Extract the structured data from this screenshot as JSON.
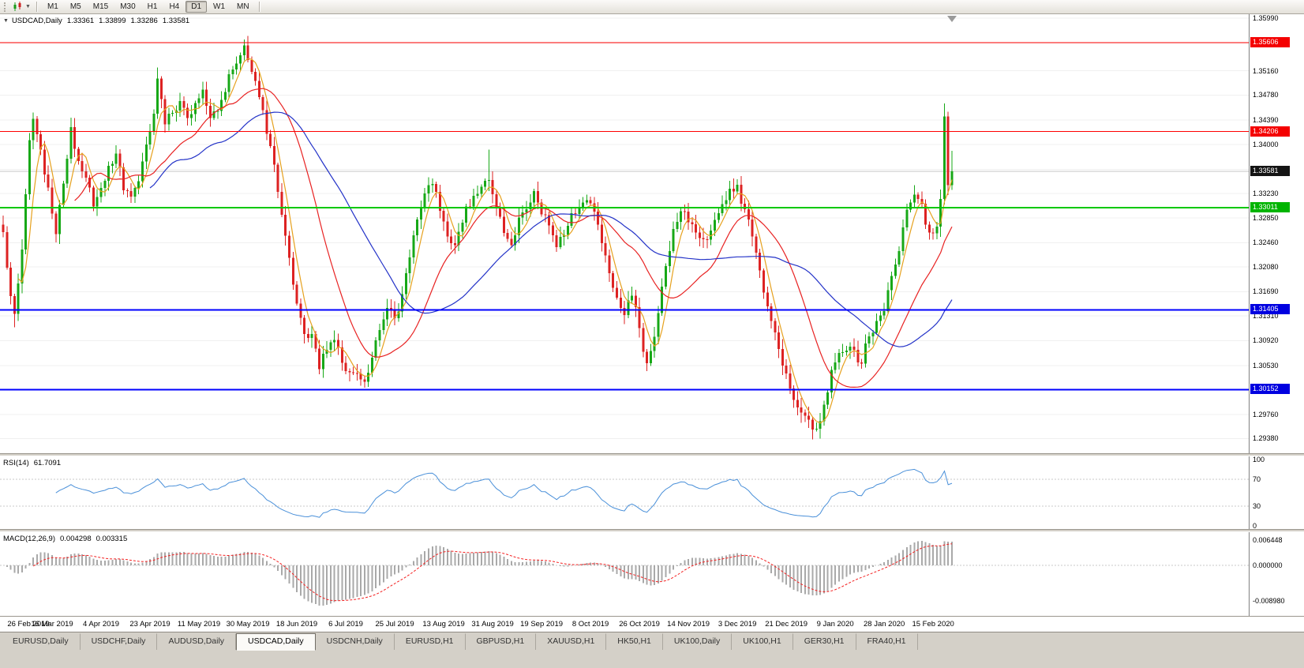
{
  "toolbar": {
    "timeframes": [
      "M1",
      "M5",
      "M15",
      "M30",
      "H1",
      "H4",
      "D1",
      "W1",
      "MN"
    ],
    "active": "D1"
  },
  "chart_header": {
    "expander": "▼",
    "symbol": "USDCAD,Daily",
    "open": "1.33361",
    "high": "1.33899",
    "low": "1.33286",
    "close": "1.33581"
  },
  "price_axis": {
    "labels": [
      "1.35990",
      "1.35600",
      "1.35160",
      "1.34780",
      "1.34390",
      "1.34000",
      "1.33610",
      "1.33230",
      "1.32850",
      "1.32460",
      "1.32080",
      "1.31690",
      "1.31310",
      "1.30920",
      "1.30530",
      "1.30140",
      "1.29760",
      "1.29380"
    ],
    "tags": [
      {
        "value": 1.35606,
        "text": "1.35606",
        "bg": "#f40000"
      },
      {
        "value": 1.34206,
        "text": "1.34206",
        "bg": "#f40000"
      },
      {
        "value": 1.33581,
        "text": "1.33581",
        "bg": "#141414"
      },
      {
        "value": 1.33011,
        "text": "1.33011",
        "bg": "#00b400"
      },
      {
        "value": 1.31405,
        "text": "1.31405",
        "bg": "#0000e0"
      },
      {
        "value": 1.30152,
        "text": "1.30152",
        "bg": "#0000e0"
      }
    ]
  },
  "time_axis": {
    "labels": [
      "26 Feb 2019",
      "16 Mar 2019",
      "4 Apr 2019",
      "23 Apr 2019",
      "11 May 2019",
      "30 May 2019",
      "18 Jun 2019",
      "6 Jul 2019",
      "25 Jul 2019",
      "13 Aug 2019",
      "31 Aug 2019",
      "19 Sep 2019",
      "8 Oct 2019",
      "26 Oct 2019",
      "14 Nov 2019",
      "3 Dec 2019",
      "21 Dec 2019",
      "9 Jan 2020",
      "28 Jan 2020",
      "15 Feb 2020"
    ]
  },
  "rsi_panel": {
    "title": "RSI(14)",
    "value": "61.7091",
    "line_color": "#4a90d9",
    "axis_labels": [
      "100",
      "70",
      "30",
      "0"
    ],
    "level_lines": [
      70,
      30
    ]
  },
  "macd_panel": {
    "title": "MACD(12,26,9)",
    "macd_value": "0.004298",
    "signal_value": "0.003315",
    "axis_labels": [
      "0.006448",
      "0.000000",
      "-0.008980"
    ],
    "histogram_color": "#a9a9a9",
    "signal_color": "#f42020"
  },
  "tabs": {
    "items": [
      "EURUSD,Daily",
      "USDCHF,Daily",
      "AUDUSD,Daily",
      "USDCAD,Daily",
      "USDCNH,Daily",
      "EURUSD,H1",
      "GBPUSD,H1",
      "XAUUSD,H1",
      "HK50,H1",
      "UK100,Daily",
      "UK100,H1",
      "GER30,H1",
      "FRA40,H1"
    ],
    "active": "USDCAD,Daily"
  },
  "chart_data": {
    "type": "candlestick",
    "symbol": "USDCAD",
    "timeframe": "Daily",
    "title": "USDCAD,Daily 1.33361 1.33899 1.33286 1.33581",
    "y_range": [
      1.2915,
      1.3605
    ],
    "candles": 253,
    "current_price": 1.33581,
    "up_color": "#17a817",
    "down_color": "#dd2222",
    "levels": [
      {
        "price": 1.35606,
        "color": "#ff0000",
        "width": 1
      },
      {
        "price": 1.34206,
        "color": "#ff0000",
        "width": 1
      },
      {
        "price": 1.33011,
        "color": "#00c800",
        "width": 2
      },
      {
        "price": 1.31405,
        "color": "#0000ff",
        "width": 2
      },
      {
        "price": 1.30152,
        "color": "#0000ff",
        "width": 2
      }
    ],
    "moving_averages": [
      {
        "period": 5,
        "color": "#e6a11e"
      },
      {
        "period": 20,
        "color": "#e82222"
      },
      {
        "period": 40,
        "color": "#2433c8"
      }
    ],
    "price_waypoints": [
      [
        0,
        1.3255
      ],
      [
        2,
        1.317
      ],
      [
        3,
        1.314
      ],
      [
        5,
        1.323
      ],
      [
        7,
        1.34
      ],
      [
        8,
        1.3445
      ],
      [
        10,
        1.339
      ],
      [
        12,
        1.333
      ],
      [
        14,
        1.3265
      ],
      [
        16,
        1.334
      ],
      [
        18,
        1.342
      ],
      [
        20,
        1.338
      ],
      [
        22,
        1.3345
      ],
      [
        24,
        1.3305
      ],
      [
        26,
        1.333
      ],
      [
        28,
        1.3365
      ],
      [
        30,
        1.3385
      ],
      [
        32,
        1.333
      ],
      [
        34,
        1.3315
      ],
      [
        36,
        1.335
      ],
      [
        38,
        1.34
      ],
      [
        40,
        1.345
      ],
      [
        41,
        1.35
      ],
      [
        43,
        1.3435
      ],
      [
        45,
        1.345
      ],
      [
        47,
        1.347
      ],
      [
        49,
        1.344
      ],
      [
        51,
        1.346
      ],
      [
        53,
        1.348
      ],
      [
        55,
        1.3445
      ],
      [
        57,
        1.346
      ],
      [
        59,
        1.349
      ],
      [
        61,
        1.352
      ],
      [
        63,
        1.354
      ],
      [
        64,
        1.355
      ],
      [
        66,
        1.352
      ],
      [
        68,
        1.348
      ],
      [
        70,
        1.342
      ],
      [
        72,
        1.337
      ],
      [
        74,
        1.329
      ],
      [
        76,
        1.322
      ],
      [
        78,
        1.315
      ],
      [
        80,
        1.311
      ],
      [
        82,
        1.3095
      ],
      [
        84,
        1.305
      ],
      [
        86,
        1.308
      ],
      [
        88,
        1.31
      ],
      [
        90,
        1.306
      ],
      [
        92,
        1.3035
      ],
      [
        94,
        1.304
      ],
      [
        96,
        1.3022
      ],
      [
        98,
        1.306
      ],
      [
        100,
        1.311
      ],
      [
        102,
        1.315
      ],
      [
        104,
        1.3125
      ],
      [
        106,
        1.316
      ],
      [
        108,
        1.323
      ],
      [
        110,
        1.329
      ],
      [
        112,
        1.332
      ],
      [
        114,
        1.334
      ],
      [
        116,
        1.33
      ],
      [
        118,
        1.326
      ],
      [
        120,
        1.3245
      ],
      [
        122,
        1.328
      ],
      [
        124,
        1.331
      ],
      [
        126,
        1.333
      ],
      [
        128,
        1.334
      ],
      [
        129,
        1.335
      ],
      [
        131,
        1.33
      ],
      [
        133,
        1.3265
      ],
      [
        135,
        1.325
      ],
      [
        137,
        1.328
      ],
      [
        139,
        1.33
      ],
      [
        141,
        1.332
      ],
      [
        143,
        1.3295
      ],
      [
        145,
        1.327
      ],
      [
        147,
        1.3245
      ],
      [
        149,
        1.3265
      ],
      [
        151,
        1.3285
      ],
      [
        153,
        1.3305
      ],
      [
        155,
        1.332
      ],
      [
        157,
        1.33
      ],
      [
        159,
        1.325
      ],
      [
        161,
        1.32
      ],
      [
        163,
        1.316
      ],
      [
        165,
        1.314
      ],
      [
        167,
        1.3165
      ],
      [
        169,
        1.311
      ],
      [
        171,
        1.3055
      ],
      [
        173,
        1.31
      ],
      [
        175,
        1.318
      ],
      [
        177,
        1.324
      ],
      [
        179,
        1.328
      ],
      [
        181,
        1.33
      ],
      [
        183,
        1.327
      ],
      [
        185,
        1.325
      ],
      [
        187,
        1.3245
      ],
      [
        189,
        1.3285
      ],
      [
        191,
        1.331
      ],
      [
        193,
        1.3325
      ],
      [
        195,
        1.333
      ],
      [
        197,
        1.33
      ],
      [
        199,
        1.325
      ],
      [
        201,
        1.32
      ],
      [
        203,
        1.315
      ],
      [
        205,
        1.31
      ],
      [
        207,
        1.306
      ],
      [
        209,
        1.302
      ],
      [
        211,
        1.299
      ],
      [
        213,
        1.297
      ],
      [
        215,
        1.2955
      ],
      [
        216,
        1.295
      ],
      [
        218,
        1.2995
      ],
      [
        220,
        1.304
      ],
      [
        222,
        1.3065
      ],
      [
        224,
        1.308
      ],
      [
        226,
        1.307
      ],
      [
        228,
        1.306
      ],
      [
        230,
        1.31
      ],
      [
        232,
        1.312
      ],
      [
        234,
        1.3145
      ],
      [
        236,
        1.319
      ],
      [
        238,
        1.324
      ],
      [
        240,
        1.329
      ],
      [
        242,
        1.332
      ],
      [
        244,
        1.33
      ],
      [
        246,
        1.3255
      ],
      [
        248,
        1.327
      ],
      [
        249,
        1.332
      ],
      [
        250,
        1.3445
      ],
      [
        251,
        1.3336
      ],
      [
        252,
        1.33581
      ]
    ],
    "spikes": [
      {
        "i": 3,
        "low": 1.3113
      },
      {
        "i": 41,
        "high": 1.3521
      },
      {
        "i": 64,
        "high": 1.3565
      },
      {
        "i": 96,
        "low": 1.3018
      },
      {
        "i": 129,
        "high": 1.3392
      },
      {
        "i": 216,
        "low": 1.2949
      },
      {
        "i": 250,
        "high": 1.3465
      },
      {
        "i": 252,
        "high": 1.339,
        "low": 1.3329
      }
    ]
  }
}
